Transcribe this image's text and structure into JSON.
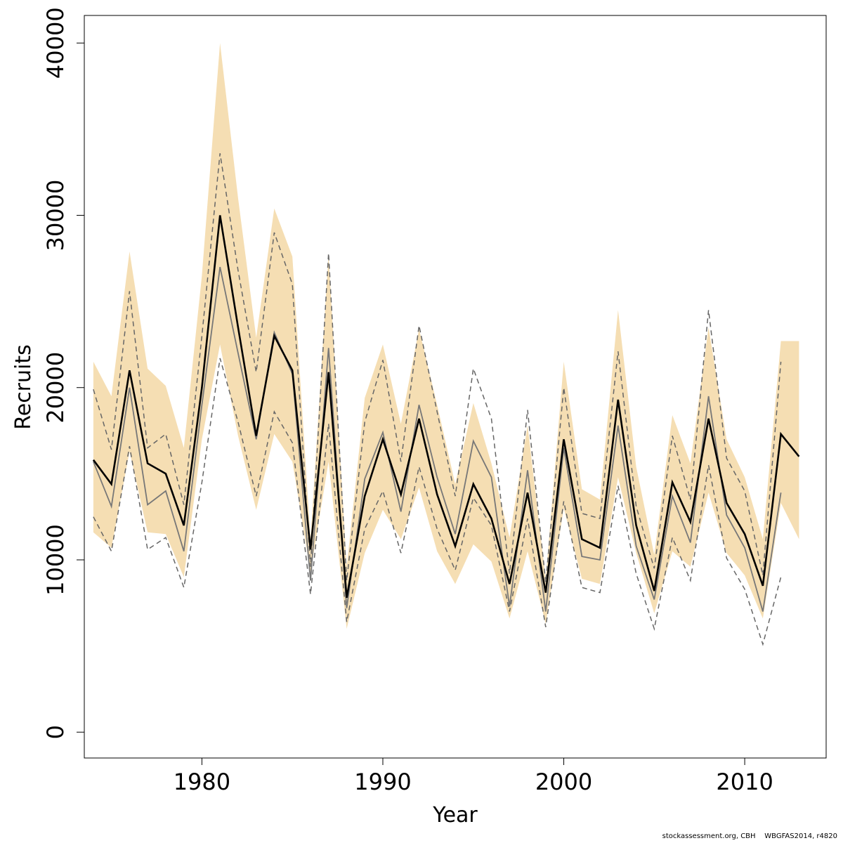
{
  "chart_data": {
    "type": "line",
    "title": "",
    "xlabel": "Year",
    "ylabel": "Recruits",
    "xlim": [
      1973.5,
      2014.5
    ],
    "ylim": [
      -1500,
      41600
    ],
    "x_ticks": [
      1980,
      1990,
      2000,
      2010
    ],
    "y_ticks": [
      0,
      10000,
      20000,
      30000,
      40000
    ],
    "grid": false,
    "legend": "none",
    "colors": {
      "band": "#f5deb3",
      "estimate": "#000000",
      "previous": "#777777",
      "previous_ci": "#666666",
      "axis": "#000000"
    },
    "series": [
      {
        "role": "confidence-band",
        "x": [
          1974,
          1975,
          1976,
          1977,
          1978,
          1979,
          1980,
          1981,
          1982,
          1983,
          1984,
          1985,
          1986,
          1987,
          1988,
          1989,
          1990,
          1991,
          1992,
          1993,
          1994,
          1995,
          1996,
          1997,
          1998,
          1999,
          2000,
          2001,
          2002,
          2003,
          2004,
          2005,
          2006,
          2007,
          2008,
          2009,
          2010,
          2011,
          2012,
          2013
        ],
        "lower": [
          11600,
          10700,
          16300,
          11600,
          11500,
          9000,
          17000,
          22500,
          17200,
          12900,
          17300,
          15700,
          9300,
          15700,
          6000,
          10400,
          12900,
          11200,
          14200,
          10500,
          8600,
          10900,
          9900,
          6600,
          10500,
          6300,
          13000,
          8900,
          8600,
          14800,
          10400,
          6900,
          10500,
          9600,
          13900,
          10400,
          9100,
          6600,
          13300,
          11200
        ],
        "upper": [
          21500,
          19500,
          27900,
          21100,
          20100,
          16500,
          26500,
          40000,
          31000,
          22900,
          30400,
          27600,
          11200,
          27700,
          9600,
          19400,
          22500,
          17900,
          23400,
          19000,
          14400,
          19100,
          15600,
          11300,
          17800,
          8900,
          21500,
          14100,
          13500,
          24500,
          15400,
          10300,
          18400,
          15600,
          23500,
          17000,
          14800,
          11200,
          22700,
          22700
        ]
      },
      {
        "role": "estimate",
        "x": [
          1974,
          1975,
          1976,
          1977,
          1978,
          1979,
          1980,
          1981,
          1982,
          1983,
          1984,
          1985,
          1986,
          1987,
          1988,
          1989,
          1990,
          1991,
          1992,
          1993,
          1994,
          1995,
          1996,
          1997,
          1998,
          1999,
          2000,
          2001,
          2002,
          2003,
          2004,
          2005,
          2006,
          2007,
          2008,
          2009,
          2010,
          2011,
          2012,
          2013
        ],
        "values": [
          15800,
          14400,
          21000,
          15600,
          15000,
          12000,
          20000,
          30000,
          23500,
          17200,
          23000,
          21000,
          10600,
          20900,
          7800,
          13700,
          17000,
          13800,
          18200,
          13800,
          10800,
          14400,
          12400,
          8600,
          13900,
          8100,
          17000,
          11200,
          10700,
          19300,
          12000,
          8200,
          14500,
          12200,
          18200,
          13300,
          11500,
          8500,
          17300,
          16000
        ]
      },
      {
        "role": "previous",
        "x": [
          1974,
          1975,
          1976,
          1977,
          1978,
          1979,
          1980,
          1981,
          1982,
          1983,
          1984,
          1985,
          1986,
          1987,
          1988,
          1989,
          1990,
          1991,
          1992,
          1993,
          1994,
          1995,
          1996,
          1997,
          1998,
          1999,
          2000,
          2001,
          2002,
          2003,
          2004,
          2005,
          2006,
          2007,
          2008,
          2009,
          2010,
          2011,
          2012
        ],
        "values": [
          15700,
          13100,
          20000,
          13200,
          14000,
          10500,
          19000,
          27000,
          22000,
          17000,
          23200,
          20800,
          8800,
          22300,
          7200,
          14700,
          17400,
          12800,
          19000,
          14800,
          11500,
          16900,
          14800,
          7300,
          15200,
          7000,
          16500,
          10200,
          10000,
          17800,
          10800,
          7700,
          13700,
          11000,
          19500,
          12600,
          10700,
          7000,
          13900
        ]
      },
      {
        "role": "previous-ci-upper",
        "x": [
          1974,
          1975,
          1976,
          1977,
          1978,
          1979,
          1980,
          1981,
          1982,
          1983,
          1984,
          1985,
          1986,
          1987,
          1988,
          1989,
          1990,
          1991,
          1992,
          1993,
          1994,
          1995,
          1996,
          1997,
          1998,
          1999,
          2000,
          2001,
          2002,
          2003,
          2004,
          2005,
          2006,
          2007,
          2008,
          2009,
          2010,
          2011,
          2012
        ],
        "values": [
          19900,
          16400,
          25600,
          16500,
          17300,
          13200,
          23000,
          33600,
          26800,
          20900,
          29000,
          26000,
          9600,
          27800,
          8800,
          18000,
          21600,
          15700,
          23600,
          18600,
          13700,
          21100,
          18200,
          9200,
          18700,
          8700,
          20000,
          12700,
          12400,
          22100,
          13100,
          9500,
          17200,
          13500,
          24500,
          15900,
          14000,
          9100,
          21500
        ]
      },
      {
        "role": "previous-ci-lower",
        "x": [
          1974,
          1975,
          1976,
          1977,
          1978,
          1979,
          1980,
          1981,
          1982,
          1983,
          1984,
          1985,
          1986,
          1987,
          1988,
          1989,
          1990,
          1991,
          1992,
          1993,
          1994,
          1995,
          1996,
          1997,
          1998,
          1999,
          2000,
          2001,
          2002,
          2003,
          2004,
          2005,
          2006,
          2007,
          2008,
          2009,
          2010,
          2011,
          2012
        ],
        "values": [
          12500,
          10500,
          16600,
          10600,
          11300,
          8400,
          14500,
          21700,
          18000,
          13700,
          18600,
          16800,
          8000,
          17900,
          6400,
          11800,
          14000,
          10400,
          15400,
          11800,
          9400,
          13600,
          12000,
          7000,
          12400,
          6100,
          13400,
          8400,
          8100,
          14300,
          9200,
          6000,
          11300,
          8800,
          15500,
          10100,
          8300,
          5100,
          9000
        ]
      }
    ]
  },
  "footer": {
    "text": "stockassessment.org, CBH    WBGFAS2014, r4820"
  }
}
